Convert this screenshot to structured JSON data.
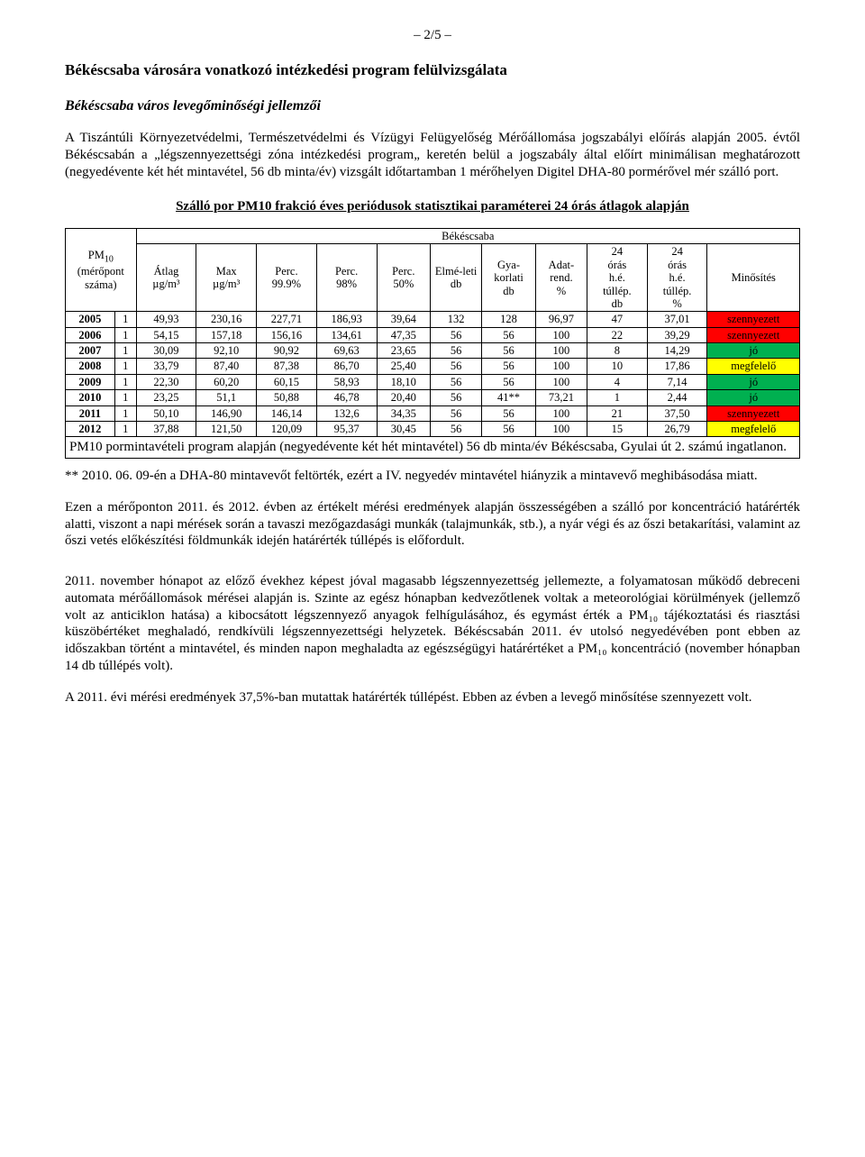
{
  "page_number": "– 2/5 –",
  "doc_title": "Békéscsaba városára vonatkozó intézkedési program felülvizsgálata",
  "subheading": "Békéscsaba város levegőminőségi jellemzői",
  "intro_para": "A Tiszántúli Környezetvédelmi, Természetvédelmi és Vízügyi Felügyelőség Mérőállomása jogszabályi előírás alapján 2005. évtől Békéscsabán a „légszennyezettségi zóna intézkedési program„ keretén belül a jogszabály által előírt minimálisan meghatározott (negyedévente két hét mintavétel, 56 db minta/év) vizsgált időtartamban 1 mérőhelyen Digitel DHA-80 pormérővel mér szálló port.",
  "table_caption": "Szálló por PM10 frakció éves periódusok statisztikai paraméterei 24 órás átlagok alapján",
  "table": {
    "city_header": "Békéscsaba",
    "row_header_html": "PM<sub>10</sub> (mérőpont száma)",
    "columns": [
      "Átlag µg/m³",
      "Max µg/m³",
      "Perc. 99.9%",
      "Perc. 98%",
      "Perc. 50%",
      "Elmé-leti db",
      "Gya-korlati db",
      "Adat-rend. %",
      "24 órás h.é. túllép. db",
      "24 órás h.é. túllép. %",
      "Minősítés"
    ],
    "rows": [
      {
        "year": "2005",
        "pt": "1",
        "cells": [
          "49,93",
          "230,16",
          "227,71",
          "186,93",
          "39,64",
          "132",
          "128",
          "96,97",
          "47",
          "37,01"
        ],
        "rating": "szennyezett",
        "rating_bg": "#ff0000"
      },
      {
        "year": "2006",
        "pt": "1",
        "cells": [
          "54,15",
          "157,18",
          "156,16",
          "134,61",
          "47,35",
          "56",
          "56",
          "100",
          "22",
          "39,29"
        ],
        "rating": "szennyezett",
        "rating_bg": "#ff0000"
      },
      {
        "year": "2007",
        "pt": "1",
        "cells": [
          "30,09",
          "92,10",
          "90,92",
          "69,63",
          "23,65",
          "56",
          "56",
          "100",
          "8",
          "14,29"
        ],
        "rating": "jó",
        "rating_bg": "#00b050"
      },
      {
        "year": "2008",
        "pt": "1",
        "cells": [
          "33,79",
          "87,40",
          "87,38",
          "86,70",
          "25,40",
          "56",
          "56",
          "100",
          "10",
          "17,86"
        ],
        "rating": "megfelelő",
        "rating_bg": "#ffff00"
      },
      {
        "year": "2009",
        "pt": "1",
        "cells": [
          "22,30",
          "60,20",
          "60,15",
          "58,93",
          "18,10",
          "56",
          "56",
          "100",
          "4",
          "7,14"
        ],
        "rating": "jó",
        "rating_bg": "#00b050"
      },
      {
        "year": "2010",
        "pt": "1",
        "cells": [
          "23,25",
          "51,1",
          "50,88",
          "46,78",
          "20,40",
          "56",
          "41**",
          "73,21",
          "1",
          "2,44"
        ],
        "rating": "jó",
        "rating_bg": "#00b050"
      },
      {
        "year": "2011",
        "pt": "1",
        "cells": [
          "50,10",
          "146,90",
          "146,14",
          "132,6",
          "34,35",
          "56",
          "56",
          "100",
          "21",
          "37,50"
        ],
        "rating": "szennyezett",
        "rating_bg": "#ff0000"
      },
      {
        "year": "2012",
        "pt": "1",
        "cells": [
          "37,88",
          "121,50",
          "120,09",
          "95,37",
          "30,45",
          "56",
          "56",
          "100",
          "15",
          "26,79"
        ],
        "rating": "megfelelő",
        "rating_bg": "#ffff00"
      }
    ],
    "note1": "PM10 pormintavételi program alapján (negyedévente két hét mintavétel) 56 db minta/év Békéscsaba, Gyulai út 2. számú ingatlanon.",
    "note2": "** 2010. 06. 09-én a DHA-80 mintavevőt feltörték, ezért a IV. negyedév mintavétel hiányzik a mintavevő meghibásodása miatt."
  },
  "para_after_table": "Ezen a mérőponton 2011. és 2012. évben az értékelt mérési eredmények alapján összességében a szálló por koncentráció határérték alatti, viszont a napi mérések során a tavaszi mezőgazdasági munkák (talajmunkák, stb.), a nyár végi és az őszi betakarítási, valamint az őszi vetés előkészítési földmunkák idején határérték túllépés is előfordult.",
  "para_nov": "2011. november hónapot az előző évekhez képest jóval magasabb légszennyezettség jellemezte, a folyamatosan működő debreceni automata mérőállomások mérései alapján is. Szinte az egész hónapban kedvezőtlenek voltak a meteorológiai körülmények (jellemző volt az anticiklon hatása) a kibocsátott légszennyező anyagok felhígulásához, és egymást érték a PM₁₀ tájékoztatási és riasztási küszöbértéket meghaladó, rendkívüli légszennyezettségi helyzetek. Békéscsabán 2011. év utolsó negyedévében pont ebben az időszakban történt a mintavétel, és minden napon meghaladta az egészségügyi határértéket a PM₁₀ koncentráció (november hónapban 14 db túllépés volt).",
  "para_last": "A 2011. évi mérési eredmények 37,5%-ban mutattak határérték túllépést. Ebben az évben a levegő minősítése szennyezett volt.",
  "colors": {
    "szennyezett": "#ff0000",
    "jo": "#00b050",
    "megfelelo": "#ffff00",
    "border": "#000000",
    "background": "#ffffff"
  }
}
